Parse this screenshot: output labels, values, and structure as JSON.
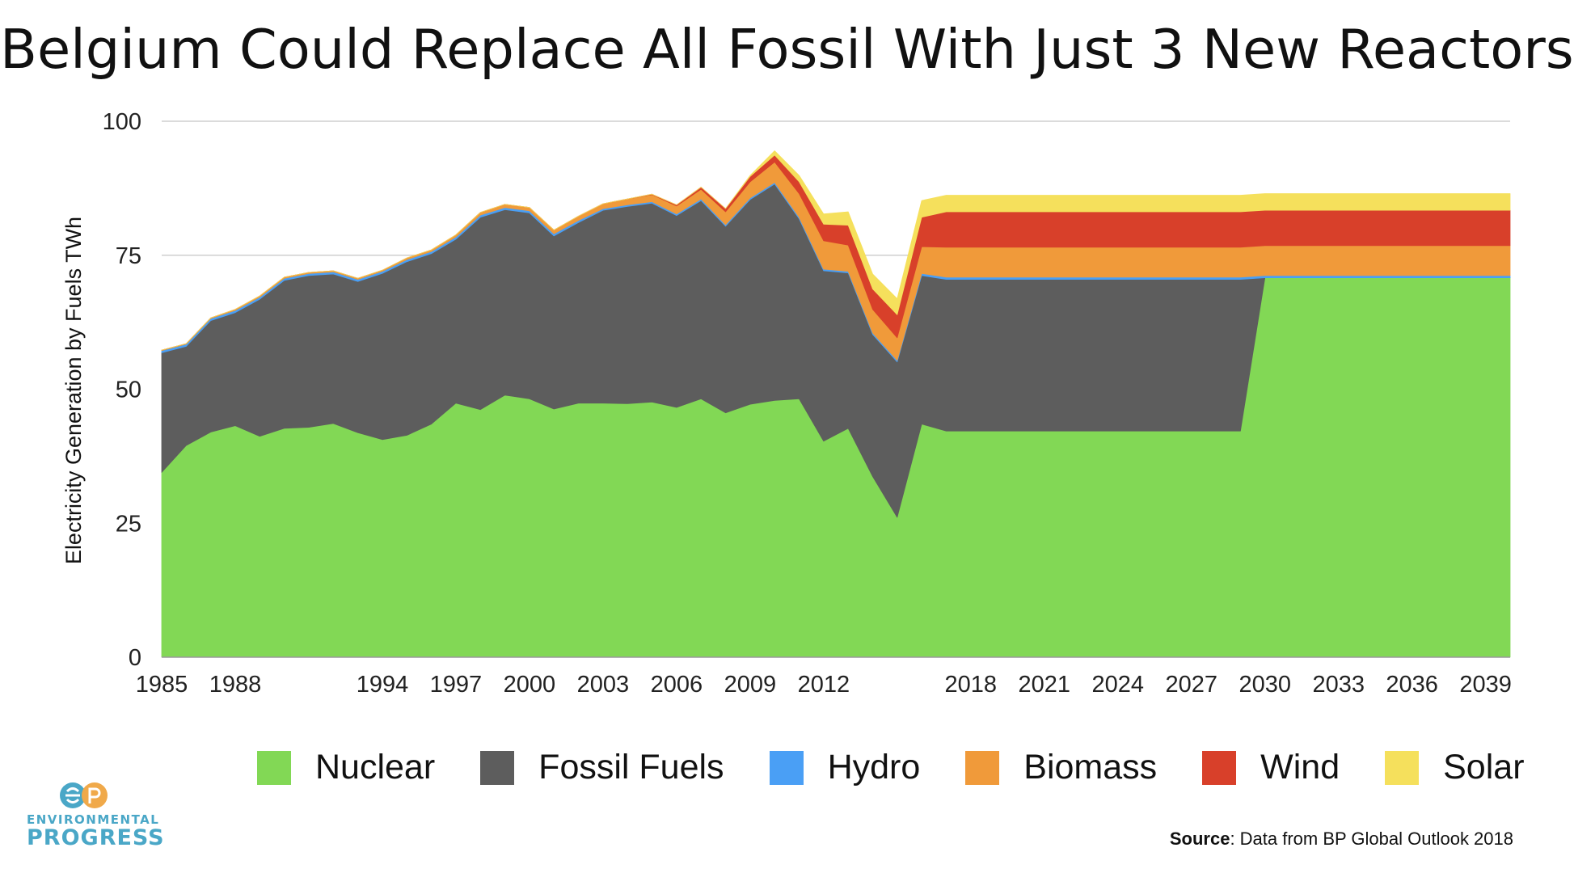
{
  "title": "Belgium Could Replace All Fossil With Just 3 New Reactors",
  "chart_data": {
    "type": "area",
    "stacked": true,
    "title": "Belgium Could Replace All Fossil With Just 3 New Reactors",
    "ylabel": "Electricity Generation by Fuels TWh",
    "xlabel": "",
    "ylim": [
      0,
      100
    ],
    "xlim": [
      1985,
      2040
    ],
    "yticks": [
      0,
      25,
      50,
      75,
      100
    ],
    "xtick_labels": [
      "1985",
      "1988",
      "1994",
      "1997",
      "2000",
      "2003",
      "2006",
      "2009",
      "2012",
      "2018",
      "2021",
      "2024",
      "2027",
      "2030",
      "2033",
      "2036",
      "2039"
    ],
    "grid": "horizontal",
    "legend_position": "bottom",
    "x": [
      1985,
      1986,
      1987,
      1988,
      1989,
      1990,
      1991,
      1992,
      1993,
      1994,
      1995,
      1996,
      1997,
      1998,
      1999,
      2000,
      2001,
      2002,
      2003,
      2004,
      2005,
      2006,
      2007,
      2008,
      2009,
      2010,
      2011,
      2012,
      2013,
      2014,
      2015,
      2016,
      2017,
      2018,
      2019,
      2020,
      2021,
      2022,
      2023,
      2024,
      2025,
      2026,
      2027,
      2028,
      2029,
      2030,
      2031,
      2032,
      2033,
      2034,
      2035,
      2036,
      2037,
      2038,
      2039,
      2040
    ],
    "series": [
      {
        "name": "Nuclear",
        "color": "#82d855",
        "values": [
          34.5,
          39.5,
          42.0,
          43.2,
          41.2,
          42.7,
          42.9,
          43.6,
          41.9,
          40.6,
          41.4,
          43.5,
          47.4,
          46.2,
          48.9,
          48.2,
          46.3,
          47.4,
          47.4,
          47.3,
          47.6,
          46.6,
          48.2,
          45.6,
          47.2,
          47.9,
          48.2,
          40.3,
          42.7,
          33.7,
          26.1,
          43.5,
          42.2,
          42.2,
          42.2,
          42.2,
          42.2,
          42.2,
          42.2,
          42.2,
          42.2,
          42.2,
          42.2,
          42.2,
          42.2,
          70.8,
          70.8,
          70.8,
          70.8,
          70.8,
          70.8,
          70.8,
          70.8,
          70.8,
          70.8,
          70.8
        ]
      },
      {
        "name": "Fossil Fuels",
        "color": "#5d5d5d",
        "values": [
          22.3,
          18.5,
          20.8,
          21.1,
          25.6,
          27.6,
          28.3,
          27.9,
          28.2,
          31.0,
          32.4,
          31.8,
          30.6,
          35.9,
          34.6,
          34.7,
          32.3,
          33.7,
          36.0,
          36.8,
          37.1,
          35.8,
          37.0,
          34.8,
          38.2,
          40.4,
          33.6,
          31.8,
          29.0,
          26.5,
          29.0,
          27.7,
          28.3,
          28.3,
          28.3,
          28.3,
          28.3,
          28.3,
          28.3,
          28.3,
          28.3,
          28.3,
          28.3,
          28.3,
          28.3,
          0,
          0,
          0,
          0,
          0,
          0,
          0,
          0,
          0,
          0,
          0
        ]
      },
      {
        "name": "Hydro",
        "color": "#4a9ff5",
        "values": [
          0.4,
          0.4,
          0.4,
          0.4,
          0.4,
          0.4,
          0.4,
          0.4,
          0.4,
          0.4,
          0.4,
          0.4,
          0.4,
          0.4,
          0.4,
          0.4,
          0.4,
          0.4,
          0.3,
          0.3,
          0.3,
          0.3,
          0.3,
          0.3,
          0.3,
          0.3,
          0.3,
          0.3,
          0.3,
          0.3,
          0.3,
          0.4,
          0.4,
          0.4,
          0.4,
          0.4,
          0.4,
          0.4,
          0.4,
          0.4,
          0.4,
          0.4,
          0.4,
          0.4,
          0.4,
          0.4,
          0.4,
          0.4,
          0.4,
          0.4,
          0.4,
          0.4,
          0.4,
          0.4,
          0.4,
          0.4
        ]
      },
      {
        "name": "Biomass",
        "color": "#f09a3a",
        "values": [
          0.1,
          0.1,
          0.1,
          0.2,
          0.2,
          0.2,
          0.2,
          0.2,
          0.2,
          0.2,
          0.3,
          0.3,
          0.4,
          0.5,
          0.6,
          0.6,
          0.7,
          0.8,
          0.9,
          1.1,
          1.3,
          1.5,
          1.8,
          2.4,
          3.0,
          3.8,
          4.4,
          5.3,
          4.9,
          4.4,
          4.2,
          5.0,
          5.6,
          5.6,
          5.6,
          5.6,
          5.6,
          5.6,
          5.6,
          5.6,
          5.6,
          5.6,
          5.6,
          5.6,
          5.6,
          5.6,
          5.6,
          5.6,
          5.6,
          5.6,
          5.6,
          5.6,
          5.6,
          5.6,
          5.6,
          5.6
        ]
      },
      {
        "name": "Wind",
        "color": "#d8402a",
        "values": [
          0,
          0,
          0,
          0,
          0,
          0,
          0,
          0,
          0,
          0,
          0,
          0,
          0,
          0,
          0,
          0,
          0,
          0,
          0,
          0,
          0.1,
          0.2,
          0.4,
          0.6,
          1.0,
          1.3,
          2.2,
          3.1,
          3.7,
          3.8,
          4.3,
          5.5,
          6.6,
          6.6,
          6.6,
          6.6,
          6.6,
          6.6,
          6.6,
          6.6,
          6.6,
          6.6,
          6.6,
          6.6,
          6.6,
          6.6,
          6.6,
          6.6,
          6.6,
          6.6,
          6.6,
          6.6,
          6.6,
          6.6,
          6.6,
          6.6
        ]
      },
      {
        "name": "Solar",
        "color": "#f5e05c",
        "values": [
          0,
          0,
          0,
          0,
          0,
          0,
          0,
          0,
          0,
          0,
          0,
          0,
          0,
          0,
          0,
          0,
          0,
          0,
          0,
          0,
          0,
          0,
          0,
          0,
          0.2,
          0.8,
          1.2,
          1.9,
          2.5,
          2.8,
          3.0,
          3.1,
          3.1,
          3.1,
          3.1,
          3.1,
          3.1,
          3.1,
          3.1,
          3.1,
          3.1,
          3.1,
          3.1,
          3.1,
          3.1,
          3.1,
          3.1,
          3.1,
          3.1,
          3.1,
          3.1,
          3.1,
          3.1,
          3.1,
          3.1,
          3.1
        ]
      }
    ]
  },
  "legend": [
    {
      "label": "Nuclear",
      "color": "#82d855"
    },
    {
      "label": "Fossil Fuels",
      "color": "#5d5d5d"
    },
    {
      "label": "Hydro",
      "color": "#4a9ff5"
    },
    {
      "label": "Biomass",
      "color": "#f09a3a"
    },
    {
      "label": "Wind",
      "color": "#d8402a"
    },
    {
      "label": "Solar",
      "color": "#f5e05c"
    }
  ],
  "logo": {
    "line1": "ENVIRONMENTAL",
    "line2": "PROGRESS",
    "mark": "EP",
    "color": "#4aa7c7"
  },
  "source": {
    "bold": "Source",
    "text": ": Data from BP Global Outlook 2018"
  }
}
